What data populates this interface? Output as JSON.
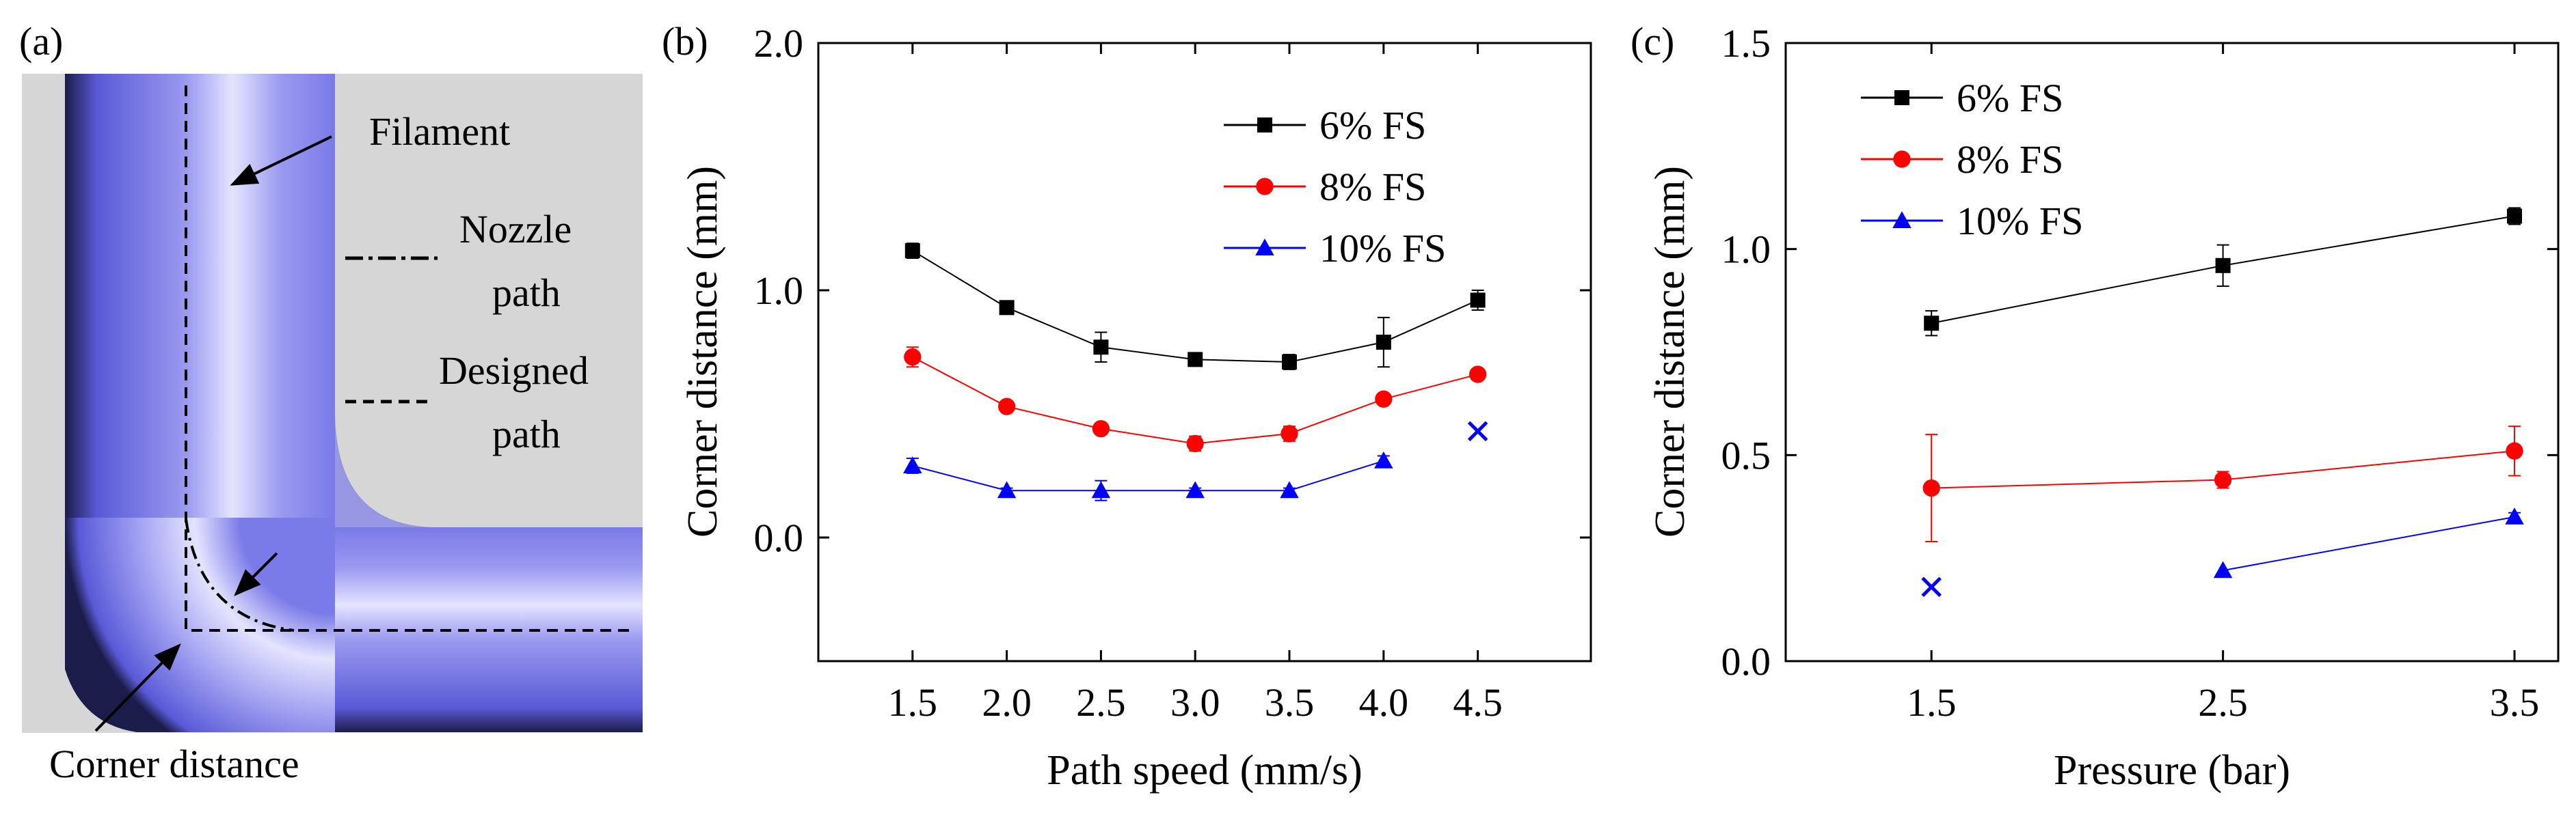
{
  "panel_a": {
    "label": "(a)",
    "filament_label": "Filament",
    "nozzle_path_label_1": "Nozzle",
    "nozzle_path_label_2": "path",
    "designed_path_label_1": "Designed",
    "designed_path_label_2": "path",
    "corner_distance_label": "Corner distance",
    "colors": {
      "background": "#d6d6d6",
      "filament_dark": "#1c1c4a",
      "filament_mid": "#6b6be8",
      "filament_light": "#dcdcff"
    }
  },
  "chart_data": [
    {
      "panel_label": "(b)",
      "type": "line",
      "xlabel": "Path speed (mm/s)",
      "ylabel": "Corner distance (mm)",
      "ylim": [
        -0.5,
        2.0
      ],
      "yticks": [
        "0.0",
        "1.0",
        "2.0"
      ],
      "ytick_values": [
        0.0,
        1.0,
        2.0
      ],
      "xlim": [
        1.0,
        5.1
      ],
      "xticks": [
        "1.5",
        "2.0",
        "2.5",
        "3.0",
        "3.5",
        "4.0",
        "4.5"
      ],
      "xtick_values": [
        1.5,
        2.0,
        2.5,
        3.0,
        3.5,
        4.0,
        4.5
      ],
      "legend_position": "top-right",
      "series": [
        {
          "name": "6% FS",
          "color": "#000000",
          "marker": "square",
          "x": [
            1.5,
            2.0,
            2.5,
            3.0,
            3.5,
            4.0,
            4.5
          ],
          "values": [
            1.16,
            0.93,
            0.77,
            0.72,
            0.71,
            0.79,
            0.96
          ],
          "errors": [
            0.03,
            0.02,
            0.06,
            0.02,
            0.03,
            0.1,
            0.04
          ]
        },
        {
          "name": "8% FS",
          "color": "#ff0000",
          "marker": "circle",
          "x": [
            1.5,
            2.0,
            2.5,
            3.0,
            3.5,
            4.0,
            4.5
          ],
          "values": [
            0.73,
            0.53,
            0.44,
            0.38,
            0.42,
            0.56,
            0.66
          ],
          "errors": [
            0.04,
            0.02,
            0.02,
            0.03,
            0.03,
            0.02,
            0.02
          ]
        },
        {
          "name": "10% FS",
          "color": "#0000ff",
          "marker": "triangle",
          "x": [
            1.5,
            2.0,
            2.5,
            3.0,
            3.5,
            4.0
          ],
          "values": [
            0.29,
            0.19,
            0.19,
            0.19,
            0.19,
            0.31
          ],
          "errors": [
            0.03,
            0.01,
            0.04,
            0.01,
            0.01,
            0.02
          ]
        }
      ],
      "extra_points": [
        {
          "x": 4.5,
          "y": 0.43,
          "marker": "x",
          "color": "#0000ff"
        }
      ]
    },
    {
      "panel_label": "(c)",
      "type": "line",
      "xlabel": "Pressure (bar)",
      "ylabel": "Corner distance (mm)",
      "ylim": [
        0.0,
        1.5
      ],
      "yticks": [
        "0.0",
        "0.5",
        "1.0",
        "1.5"
      ],
      "ytick_values": [
        0.0,
        0.5,
        1.0,
        1.5
      ],
      "xlim": [
        1.0,
        3.65
      ],
      "xticks": [
        "1.5",
        "2.5",
        "3.5"
      ],
      "xtick_values": [
        1.5,
        2.5,
        3.5
      ],
      "legend_position": "top-left",
      "series": [
        {
          "name": "6% FS",
          "color": "#000000",
          "marker": "square",
          "x": [
            1.5,
            2.5,
            3.5
          ],
          "values": [
            0.82,
            0.96,
            1.08
          ],
          "errors": [
            0.03,
            0.05,
            0.02
          ]
        },
        {
          "name": "8% FS",
          "color": "#ff0000",
          "marker": "circle",
          "x": [
            1.5,
            2.5,
            3.5
          ],
          "values": [
            0.42,
            0.44,
            0.51
          ],
          "errors": [
            0.13,
            0.02,
            0.06
          ]
        },
        {
          "name": "10% FS",
          "color": "#0000ff",
          "marker": "triangle",
          "x": [
            2.5,
            3.5
          ],
          "values": [
            0.22,
            0.35
          ],
          "errors": [
            0.0,
            0.01
          ]
        }
      ],
      "extra_points": [
        {
          "x": 1.5,
          "y": 0.18,
          "marker": "x",
          "color": "#0000ff"
        }
      ]
    }
  ]
}
